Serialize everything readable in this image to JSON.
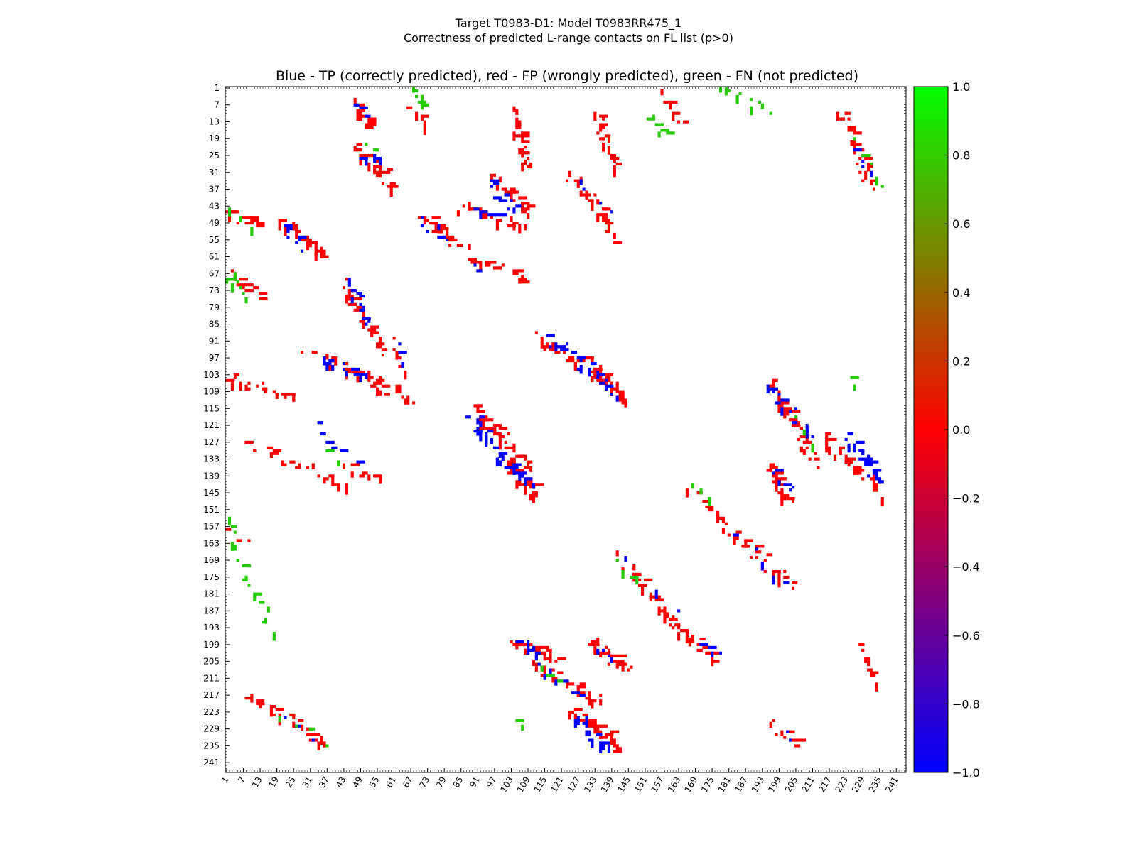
{
  "page_title": {
    "line1": "Target T0983-D1: Model T0983RR475_1",
    "line2": "Correctness of predicted L-range contacts on FL list (p>0)"
  },
  "chart_data": {
    "type": "heatmap",
    "title": "Blue - TP (correctly predicted), red - FP (wrongly predicted), green - FN (not predicted)",
    "xlabel": "",
    "ylabel": "",
    "n_residues": 244,
    "x_tick_labels": [
      "1",
      "7",
      "13",
      "19",
      "25",
      "31",
      "37",
      "43",
      "49",
      "55",
      "61",
      "67",
      "73",
      "79",
      "85",
      "91",
      "97",
      "103",
      "109",
      "115",
      "121",
      "127",
      "133",
      "139",
      "145",
      "151",
      "157",
      "163",
      "169",
      "175",
      "181",
      "187",
      "193",
      "199",
      "205",
      "211",
      "217",
      "223",
      "229",
      "235",
      "241"
    ],
    "y_tick_labels": [
      "1",
      "7",
      "13",
      "19",
      "25",
      "31",
      "37",
      "43",
      "49",
      "55",
      "61",
      "67",
      "73",
      "79",
      "85",
      "91",
      "97",
      "103",
      "109",
      "115",
      "121",
      "127",
      "133",
      "139",
      "145",
      "151",
      "157",
      "163",
      "169",
      "175",
      "181",
      "187",
      "193",
      "199",
      "205",
      "211",
      "217",
      "223",
      "229",
      "235",
      "241"
    ],
    "colorbar": {
      "range": [
        -1.0,
        1.0
      ],
      "tick_labels": [
        "1.0",
        "0.8",
        "0.6",
        "0.4",
        "0.2",
        "0.0",
        "−0.2",
        "−0.4",
        "−0.6",
        "−0.8",
        "−1.0"
      ],
      "colors": {
        "low": "#0000ff",
        "mid": "#ff0000",
        "high": "#00ff00"
      }
    },
    "value_meaning": {
      "TP": -1.0,
      "FP": 0.0,
      "FN": 1.0
    },
    "colors": {
      "TP": "#0000ff",
      "FP": "#ff0000",
      "FN": "#22cc00"
    },
    "segments": [
      {
        "cls": "FP",
        "x": [
          47,
          52
        ],
        "y": [
          6,
          15
        ],
        "n": 14
      },
      {
        "cls": "TP",
        "x": [
          47,
          52
        ],
        "y": [
          6,
          12
        ],
        "n": 3
      },
      {
        "cls": "FN",
        "x": [
          67,
          73
        ],
        "y": [
          1,
          7
        ],
        "n": 10
      },
      {
        "cls": "FP",
        "x": [
          67,
          73
        ],
        "y": [
          7,
          15
        ],
        "n": 10
      },
      {
        "cls": "FP",
        "x": [
          47,
          61
        ],
        "y": [
          22,
          36
        ],
        "n": 24
      },
      {
        "cls": "TP",
        "x": [
          49,
          58
        ],
        "y": [
          25,
          27
        ],
        "n": 7
      },
      {
        "cls": "FN",
        "x": [
          52,
          54
        ],
        "y": [
          22,
          23
        ],
        "n": 2
      },
      {
        "cls": "FP",
        "x": [
          104,
          109
        ],
        "y": [
          9,
          30
        ],
        "n": 30
      },
      {
        "cls": "FP",
        "x": [
          96,
          110
        ],
        "y": [
          33,
          46
        ],
        "n": 24
      },
      {
        "cls": "TP",
        "x": [
          96,
          104
        ],
        "y": [
          36,
          44
        ],
        "n": 12
      },
      {
        "cls": "FP",
        "x": [
          84,
          107
        ],
        "y": [
          43,
          50
        ],
        "n": 18
      },
      {
        "cls": "TP",
        "x": [
          88,
          102
        ],
        "y": [
          44,
          46
        ],
        "n": 6
      },
      {
        "cls": "FP",
        "x": [
          71,
          86
        ],
        "y": [
          47,
          58
        ],
        "n": 24
      },
      {
        "cls": "TP",
        "x": [
          71,
          80
        ],
        "y": [
          47,
          55
        ],
        "n": 6
      },
      {
        "cls": "FP",
        "x": [
          89,
          100
        ],
        "y": [
          62,
          65
        ],
        "n": 10
      },
      {
        "cls": "TP",
        "x": [
          89,
          91
        ],
        "y": [
          64,
          65
        ],
        "n": 2
      },
      {
        "cls": "FP",
        "x": [
          104,
          108
        ],
        "y": [
          66,
          70
        ],
        "n": 8
      },
      {
        "cls": "FP",
        "x": [
          134,
          140
        ],
        "y": [
          10,
          30
        ],
        "n": 22
      },
      {
        "cls": "FP",
        "x": [
          124,
          139
        ],
        "y": [
          32,
          48
        ],
        "n": 20
      },
      {
        "cls": "TP",
        "x": [
          127,
          137
        ],
        "y": [
          34,
          46
        ],
        "n": 4
      },
      {
        "cls": "FP",
        "x": [
          135,
          140
        ],
        "y": [
          45,
          55
        ],
        "n": 10
      },
      {
        "cls": "FN",
        "x": [
          153,
          158
        ],
        "y": [
          11,
          17
        ],
        "n": 6
      },
      {
        "cls": "FP",
        "x": [
          158,
          164
        ],
        "y": [
          4,
          13
        ],
        "n": 8
      },
      {
        "cls": "FN",
        "x": [
          176,
          197
        ],
        "y": [
          1,
          9
        ],
        "n": 10
      },
      {
        "cls": "FP",
        "x": [
          221,
          233
        ],
        "y": [
          9,
          37
        ],
        "n": 30
      },
      {
        "cls": "TP",
        "x": [
          226,
          231
        ],
        "y": [
          24,
          30
        ],
        "n": 4
      },
      {
        "cls": "FN",
        "x": [
          225,
          235
        ],
        "y": [
          19,
          37
        ],
        "n": 5
      },
      {
        "cls": "FP",
        "x": [
          1,
          12
        ],
        "y": [
          45,
          50
        ],
        "n": 14
      },
      {
        "cls": "FN",
        "x": [
          1,
          9
        ],
        "y": [
          45,
          50
        ],
        "n": 3
      },
      {
        "cls": "FP",
        "x": [
          21,
          37
        ],
        "y": [
          48,
          61
        ],
        "n": 26
      },
      {
        "cls": "TP",
        "x": [
          21,
          28
        ],
        "y": [
          50,
          58
        ],
        "n": 8
      },
      {
        "cls": "FP",
        "x": [
          1,
          14
        ],
        "y": [
          67,
          75
        ],
        "n": 14
      },
      {
        "cls": "FN",
        "x": [
          1,
          7
        ],
        "y": [
          67,
          75
        ],
        "n": 8
      },
      {
        "cls": "FP",
        "x": [
          43,
          57
        ],
        "y": [
          71,
          94
        ],
        "n": 30
      },
      {
        "cls": "TP",
        "x": [
          45,
          52
        ],
        "y": [
          71,
          85
        ],
        "n": 12
      },
      {
        "cls": "FP",
        "x": [
          30,
          56
        ],
        "y": [
          95,
          104
        ],
        "n": 18
      },
      {
        "cls": "TP",
        "x": [
          36,
          51
        ],
        "y": [
          97,
          104
        ],
        "n": 14
      },
      {
        "cls": "FP",
        "x": [
          1,
          26
        ],
        "y": [
          104,
          111
        ],
        "n": 22
      },
      {
        "cls": "FP",
        "x": [
          44,
          68
        ],
        "y": [
          102,
          112
        ],
        "n": 20
      },
      {
        "cls": "TP",
        "x": [
          48,
          51
        ],
        "y": [
          103,
          105
        ],
        "n": 3
      },
      {
        "cls": "FP",
        "x": [
          61,
          64
        ],
        "y": [
          91,
          100
        ],
        "n": 6
      },
      {
        "cls": "TP",
        "x": [
          63,
          64
        ],
        "y": [
          91,
          98
        ],
        "n": 3
      },
      {
        "cls": "FP",
        "x": [
          113,
          138
        ],
        "y": [
          90,
          104
        ],
        "n": 30
      },
      {
        "cls": "TP",
        "x": [
          116,
          136
        ],
        "y": [
          91,
          104
        ],
        "n": 18
      },
      {
        "cls": "FP",
        "x": [
          133,
          146
        ],
        "y": [
          102,
          112
        ],
        "n": 22
      },
      {
        "cls": "TP",
        "x": [
          134,
          141
        ],
        "y": [
          103,
          110
        ],
        "n": 6
      },
      {
        "cls": "FP",
        "x": [
          88,
          110
        ],
        "y": [
          114,
          136
        ],
        "n": 30
      },
      {
        "cls": "TP",
        "x": [
          89,
          100
        ],
        "y": [
          118,
          132
        ],
        "n": 22
      },
      {
        "cls": "FP",
        "x": [
          101,
          112
        ],
        "y": [
          134,
          145
        ],
        "n": 34
      },
      {
        "cls": "TP",
        "x": [
          101,
          110
        ],
        "y": [
          134,
          141
        ],
        "n": 14
      },
      {
        "cls": "FP",
        "x": [
          10,
          45
        ],
        "y": [
          129,
          142
        ],
        "n": 24
      },
      {
        "cls": "TP",
        "x": [
          33,
          46
        ],
        "y": [
          120,
          134
        ],
        "n": 6
      },
      {
        "cls": "FN",
        "x": [
          38,
          41
        ],
        "y": [
          131,
          133
        ],
        "n": 2
      },
      {
        "cls": "FP",
        "x": [
          44,
          55
        ],
        "y": [
          136,
          140
        ],
        "n": 8
      },
      {
        "cls": "FP",
        "x": [
          196,
          203
        ],
        "y": [
          106,
          118
        ],
        "n": 22
      },
      {
        "cls": "TP",
        "x": [
          196,
          201
        ],
        "y": [
          108,
          114
        ],
        "n": 8
      },
      {
        "cls": "FP",
        "x": [
          202,
          213
        ],
        "y": [
          115,
          135
        ],
        "n": 18
      },
      {
        "cls": "TP",
        "x": [
          203,
          211
        ],
        "y": [
          115,
          126
        ],
        "n": 8
      },
      {
        "cls": "FN",
        "x": [
          205,
          211
        ],
        "y": [
          117,
          127
        ],
        "n": 3
      },
      {
        "cls": "FP",
        "x": [
          196,
          203
        ],
        "y": [
          135,
          148
        ],
        "n": 24
      },
      {
        "cls": "TP",
        "x": [
          197,
          203
        ],
        "y": [
          137,
          144
        ],
        "n": 6
      },
      {
        "cls": "FP",
        "x": [
          215,
          236
        ],
        "y": [
          126,
          145
        ],
        "n": 36
      },
      {
        "cls": "TP",
        "x": [
          224,
          235
        ],
        "y": [
          125,
          141
        ],
        "n": 24
      },
      {
        "cls": "FN",
        "x": [
          224,
          227
        ],
        "y": [
          105,
          107
        ],
        "n": 2
      },
      {
        "cls": "FP",
        "x": [
          168,
          203
        ],
        "y": [
          145,
          178
        ],
        "n": 40
      },
      {
        "cls": "TP",
        "x": [
          185,
          202
        ],
        "y": [
          161,
          178
        ],
        "n": 5
      },
      {
        "cls": "FN",
        "x": [
          166,
          176
        ],
        "y": [
          142,
          146
        ],
        "n": 4
      },
      {
        "cls": "FN",
        "x": [
          1,
          17
        ],
        "y": [
          155,
          196
        ],
        "n": 20
      },
      {
        "cls": "FP",
        "x": [
          3,
          10
        ],
        "y": [
          159,
          163
        ],
        "n": 3
      },
      {
        "cls": "FP",
        "x": [
          142,
          160
        ],
        "y": [
          168,
          190
        ],
        "n": 26
      },
      {
        "cls": "TP",
        "x": [
          146,
          161
        ],
        "y": [
          169,
          189
        ],
        "n": 3
      },
      {
        "cls": "FN",
        "x": [
          142,
          147
        ],
        "y": [
          170,
          176
        ],
        "n": 4
      },
      {
        "cls": "FP",
        "x": [
          159,
          177
        ],
        "y": [
          189,
          205
        ],
        "n": 30
      },
      {
        "cls": "TP",
        "x": [
          172,
          177
        ],
        "y": [
          200,
          202
        ],
        "n": 4
      },
      {
        "cls": "FP",
        "x": [
          104,
          118
        ],
        "y": [
          198,
          204
        ],
        "n": 28
      },
      {
        "cls": "TP",
        "x": [
          106,
          113
        ],
        "y": [
          198,
          203
        ],
        "n": 8
      },
      {
        "cls": "FP",
        "x": [
          132,
          145
        ],
        "y": [
          198,
          208
        ],
        "n": 26
      },
      {
        "cls": "TP",
        "x": [
          135,
          139
        ],
        "y": [
          200,
          204
        ],
        "n": 4
      },
      {
        "cls": "FP",
        "x": [
          111,
          135
        ],
        "y": [
          206,
          219
        ],
        "n": 30
      },
      {
        "cls": "TP",
        "x": [
          113,
          127
        ],
        "y": [
          207,
          217
        ],
        "n": 8
      },
      {
        "cls": "FN",
        "x": [
          114,
          119
        ],
        "y": [
          206,
          211
        ],
        "n": 3
      },
      {
        "cls": "FP",
        "x": [
          125,
          142
        ],
        "y": [
          222,
          236
        ],
        "n": 30
      },
      {
        "cls": "TP",
        "x": [
          126,
          138
        ],
        "y": [
          224,
          236
        ],
        "n": 24
      },
      {
        "cls": "FP",
        "x": [
          9,
          37
        ],
        "y": [
          218,
          234
        ],
        "n": 26
      },
      {
        "cls": "TP",
        "x": [
          23,
          30
        ],
        "y": [
          224,
          232
        ],
        "n": 3
      },
      {
        "cls": "FN",
        "x": [
          18,
          37
        ],
        "y": [
          224,
          234
        ],
        "n": 4
      },
      {
        "cls": "FP",
        "x": [
          229,
          233
        ],
        "y": [
          200,
          212
        ],
        "n": 8
      },
      {
        "cls": "FP",
        "x": [
          196,
          207
        ],
        "y": [
          228,
          234
        ],
        "n": 10
      },
      {
        "cls": "TP",
        "x": [
          202,
          203
        ],
        "y": [
          230,
          232
        ],
        "n": 2
      },
      {
        "cls": "FN",
        "x": [
          104,
          107
        ],
        "y": [
          226,
          228
        ],
        "n": 2
      }
    ]
  }
}
